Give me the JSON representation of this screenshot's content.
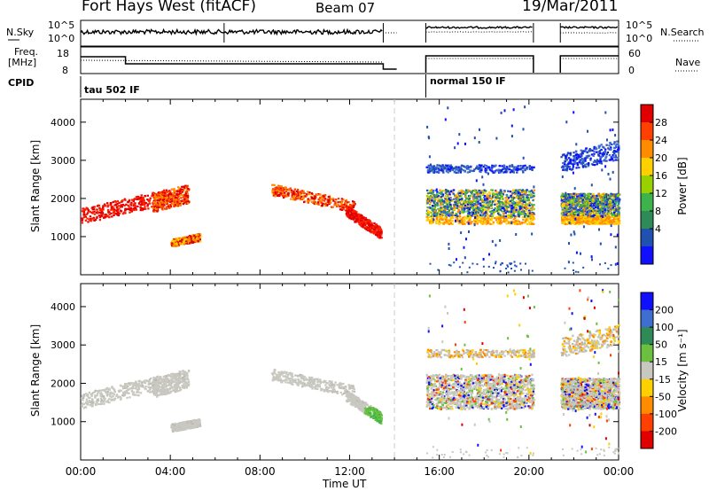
{
  "header": {
    "title": "Fort Hays West (fitACF)",
    "beam": "Beam 07",
    "date": "19/Mar/2011"
  },
  "top_panels": {
    "nsky_label": "N.Sky",
    "nsky_ticks": [
      "10^5",
      "10^0"
    ],
    "nsearch_label": "N.Search",
    "nsearch_ticks": [
      "10^5",
      "10^0"
    ],
    "freq_label": "Freq.",
    "freq_unit": "[MHz]",
    "freq_ticks": [
      "18",
      "8"
    ],
    "nave_label": "Nave",
    "nave_ticks": [
      "60",
      "0"
    ],
    "cpid_label": "CPID",
    "cpid_modes": [
      "tau 502 IF",
      "normal 150 IF"
    ]
  },
  "chart_data": [
    {
      "type": "heatmap",
      "name": "power",
      "ylabel": "Slant Range [km]",
      "ylim": [
        0,
        4600
      ],
      "yticks": [
        1000,
        2000,
        3000,
        4000
      ],
      "xlim": [
        0,
        24
      ],
      "colorbar_label": "Power [dB]",
      "colorbar_ticks": [
        "28",
        "24",
        "20",
        "16",
        "12",
        "8",
        "4"
      ],
      "colorbar_colors": [
        "#e00000",
        "#ff4000",
        "#ff8c00",
        "#ffd000",
        "#98d000",
        "#3cb44b",
        "#2e8b57",
        "#2050b0",
        "#1010ff"
      ],
      "data_gap_hours": [
        13.6,
        15.3
      ],
      "scatter_regions": [
        {
          "x": [
            0.0,
            3.7
          ],
          "y_start": 1550,
          "y_end": 2050,
          "spread": 200,
          "level": "red"
        },
        {
          "x": [
            3.2,
            4.8
          ],
          "y_start": 1900,
          "y_end": 2150,
          "spread": 250,
          "level": "red-orange"
        },
        {
          "x": [
            4.0,
            5.3
          ],
          "y_start": 850,
          "y_end": 1000,
          "spread": 100,
          "level": "orange"
        },
        {
          "x": [
            8.5,
            12.2
          ],
          "y_start": 2250,
          "y_end": 1800,
          "spread": 150,
          "level": "orange-red"
        },
        {
          "x": [
            11.8,
            13.4
          ],
          "y_start": 1700,
          "y_end": 1100,
          "spread": 150,
          "level": "red"
        },
        {
          "x": [
            15.4,
            20.2
          ],
          "y_start": 1800,
          "y_end": 1800,
          "spread": 450,
          "level": "mixed"
        },
        {
          "x": [
            15.4,
            20.2
          ],
          "y_start": 2800,
          "y_end": 2800,
          "spread": 100,
          "level": "blue"
        },
        {
          "x": [
            21.4,
            24.0
          ],
          "y_start": 1750,
          "y_end": 1750,
          "spread": 400,
          "level": "mixed"
        },
        {
          "x": [
            21.4,
            24.0
          ],
          "y_start": 2950,
          "y_end": 3300,
          "spread": 250,
          "level": "blue"
        }
      ]
    },
    {
      "type": "heatmap",
      "name": "velocity",
      "ylabel": "Slant Range [km]",
      "ylim": [
        0,
        4600
      ],
      "yticks": [
        1000,
        2000,
        3000,
        4000
      ],
      "xlim": [
        0,
        24
      ],
      "xticks": [
        "00:00",
        "04:00",
        "08:00",
        "12:00",
        "16:00",
        "20:00",
        "00:00"
      ],
      "xlabel": "Time UT",
      "colorbar_label": "Velocity [m s⁻¹]",
      "colorbar_ticks": [
        "200",
        "100",
        "50",
        "15",
        "-15",
        "-50",
        "-100",
        "-200"
      ],
      "colorbar_colors": [
        "#1010ff",
        "#3e6fd0",
        "#2e8b57",
        "#6cc040",
        "#c8c8c0",
        "#ffd000",
        "#ff8c00",
        "#ff4000",
        "#e00000"
      ],
      "data_gap_hours": [
        13.6,
        15.3
      ],
      "dominant_value_range": [
        -15,
        15
      ]
    }
  ]
}
